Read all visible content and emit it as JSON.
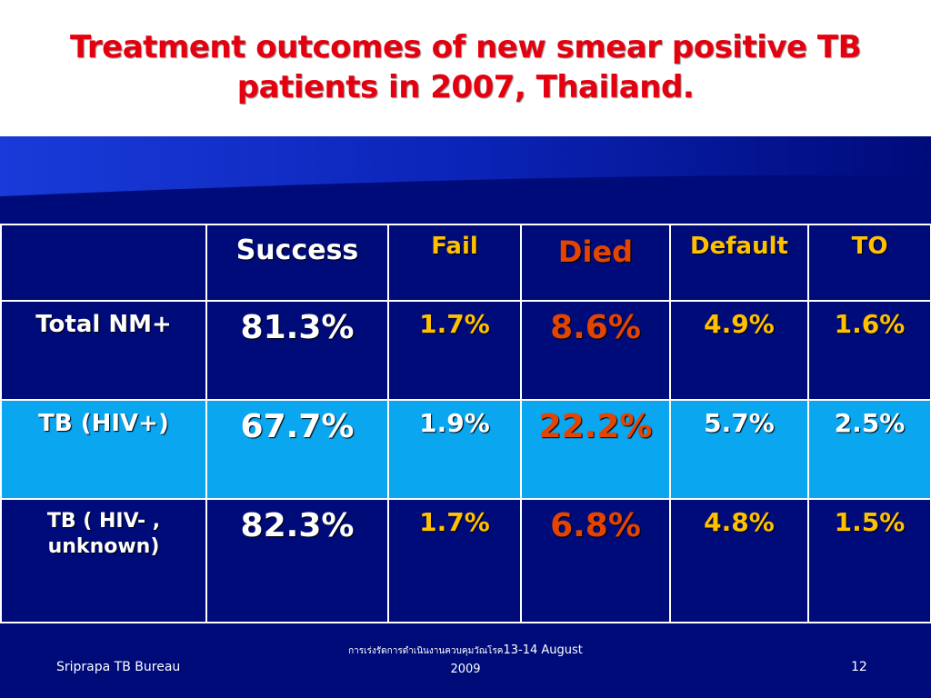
{
  "title": {
    "line1": "Treatment outcomes of new smear positive TB",
    "line2": "patients  in 2007, Thailand."
  },
  "table": {
    "headers": [
      "",
      "Success",
      "Fail",
      "Died",
      "Default",
      "TO"
    ],
    "rows": [
      {
        "label_line1": "Total NM+",
        "label_line2": "",
        "values": [
          "81.3%",
          "1.7%",
          "8.6%",
          "4.9%",
          "1.6%"
        ]
      },
      {
        "label_line1": "TB (HIV+)",
        "label_line2": "",
        "values": [
          "67.7%",
          "1.9%",
          "22.2%",
          "5.7%",
          "2.5%"
        ]
      },
      {
        "label_line1": "TB  ( HIV- ,",
        "label_line2": "unknown)",
        "values": [
          "82.3%",
          "1.7%",
          "6.8%",
          "4.8%",
          "1.5%"
        ]
      }
    ]
  },
  "footer": {
    "left": "Sriprapa TB Bureau",
    "mid_thai": "การเร่งรัดการดำเนินงานควบคุมวัณโรค",
    "mid_dates": "13-14 August",
    "mid_year": "2009",
    "right": "12"
  },
  "colors": {
    "title": "#e4000f",
    "background": "#000b7a",
    "highlight_row": "#0aa6f0",
    "yellow_text": "#ffc000",
    "red_text": "#e34400"
  }
}
